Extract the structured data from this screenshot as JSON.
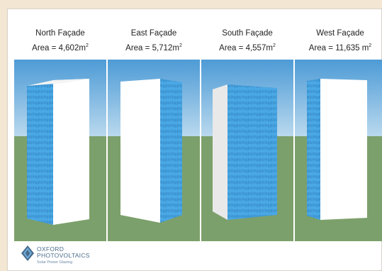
{
  "facades": [
    {
      "name": "North Façade",
      "area_prefix": "Area = ",
      "area_value": "4,602",
      "area_unit": "m",
      "area_sup": "2"
    },
    {
      "name": "East Façade",
      "area_prefix": "Area = ",
      "area_value": "5,712",
      "area_unit": "m",
      "area_sup": "2"
    },
    {
      "name": "South Façade",
      "area_prefix": "Area = ",
      "area_value": "4,557",
      "area_unit": "m",
      "area_sup": "2"
    },
    {
      "name": "West Façade",
      "area_prefix": "Area = ",
      "area_value": "11,635",
      "area_unit": " m",
      "area_sup": "2"
    }
  ],
  "glazing_text": "glazing",
  "logo": {
    "line1": "OXFORD",
    "line2": "PHOTOVOLTAICS",
    "tagline": "Solar Power Glazing"
  },
  "colors": {
    "sky": "#6fb0e0",
    "ground": "#7ca06b",
    "glazing": "#4aa8e4",
    "wall": "#ffffff",
    "brand": "#4a6c8c"
  }
}
